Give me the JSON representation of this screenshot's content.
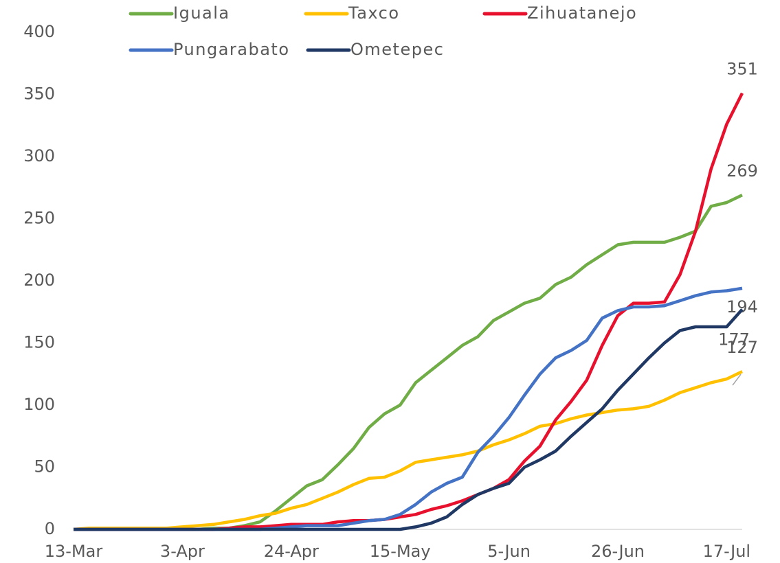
{
  "chart_data": {
    "type": "line",
    "categories": [
      "13-Mar",
      null,
      null,
      null,
      null,
      null,
      null,
      "3-Apr",
      null,
      null,
      null,
      null,
      null,
      null,
      "24-Apr",
      null,
      null,
      null,
      null,
      null,
      null,
      "15-May",
      null,
      null,
      null,
      null,
      null,
      null,
      "5-Jun",
      null,
      null,
      null,
      null,
      null,
      null,
      "26-Jun",
      null,
      null,
      null,
      null,
      null,
      null,
      "17-Jul",
      null
    ],
    "series": [
      {
        "name": "Iguala",
        "color": "#70ad47",
        "values": [
          0,
          0,
          0,
          0,
          0,
          0,
          0,
          0,
          0,
          1,
          1,
          3,
          6,
          15,
          25,
          35,
          40,
          52,
          65,
          82,
          93,
          100,
          118,
          128,
          138,
          148,
          155,
          168,
          175,
          182,
          186,
          197,
          203,
          213,
          221,
          229,
          231,
          231,
          231,
          235,
          240,
          260,
          263,
          269
        ]
      },
      {
        "name": "Taxco",
        "color": "#ffc000",
        "values": [
          0,
          1,
          1,
          1,
          1,
          1,
          1,
          2,
          3,
          4,
          6,
          8,
          11,
          13,
          17,
          20,
          25,
          30,
          36,
          41,
          42,
          47,
          54,
          56,
          58,
          60,
          63,
          68,
          72,
          77,
          83,
          85,
          89,
          92,
          94,
          96,
          97,
          99,
          104,
          110,
          114,
          118,
          121,
          127
        ]
      },
      {
        "name": "Zihuatanejo",
        "color": "#e8112d",
        "values": [
          0,
          0,
          0,
          0,
          0,
          0,
          0,
          0,
          0,
          0,
          1,
          2,
          2,
          3,
          4,
          4,
          4,
          6,
          7,
          7,
          8,
          10,
          12,
          16,
          19,
          23,
          28,
          33,
          40,
          55,
          67,
          88,
          103,
          120,
          148,
          172,
          182,
          182,
          183,
          205,
          240,
          290,
          326,
          351
        ]
      },
      {
        "name": "Pungarabato",
        "color": "#4472c4",
        "values": [
          0,
          0,
          0,
          0,
          0,
          0,
          0,
          0,
          0,
          0,
          0,
          0,
          0,
          1,
          2,
          3,
          3,
          3,
          5,
          7,
          8,
          12,
          20,
          30,
          37,
          42,
          62,
          75,
          90,
          108,
          125,
          138,
          144,
          152,
          170,
          176,
          179,
          179,
          180,
          184,
          188,
          191,
          192,
          194
        ]
      },
      {
        "name": "Ometepec",
        "color": "#1f3864",
        "values": [
          0,
          0,
          0,
          0,
          0,
          0,
          0,
          0,
          0,
          0,
          0,
          0,
          0,
          0,
          0,
          0,
          0,
          0,
          0,
          0,
          0,
          0,
          2,
          5,
          10,
          20,
          28,
          33,
          37,
          50,
          56,
          63,
          75,
          86,
          97,
          112,
          125,
          138,
          150,
          160,
          163,
          163,
          163,
          177
        ]
      }
    ],
    "ylim": [
      0,
      400
    ],
    "yticks": [
      0,
      50,
      100,
      150,
      200,
      250,
      300,
      350,
      400
    ],
    "grid": false,
    "legend": "top"
  }
}
